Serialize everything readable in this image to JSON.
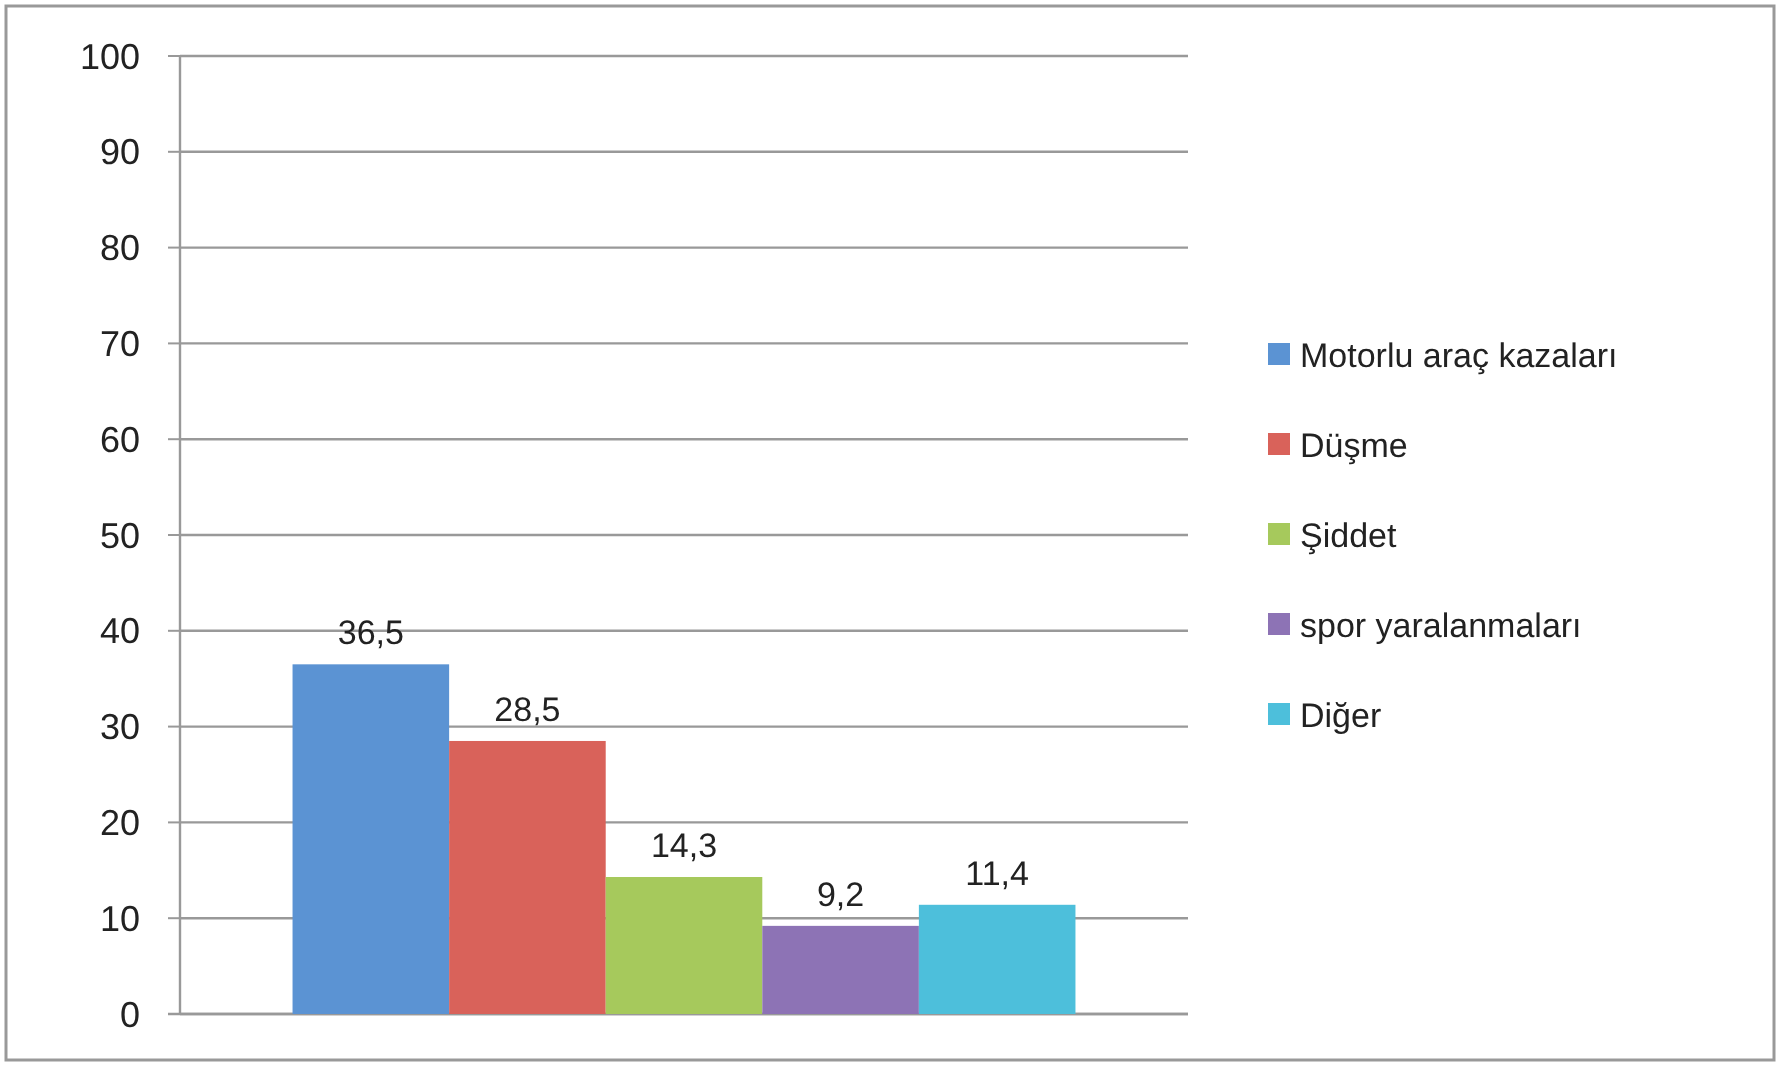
{
  "chart_data": {
    "type": "bar",
    "categories": [
      null
    ],
    "series": [
      {
        "name": "Motorlu araç kazaları",
        "color": "#5b93d3",
        "values": [
          36.5
        ],
        "value_labels": [
          "36,5"
        ]
      },
      {
        "name": "Düşme",
        "color": "#d9625a",
        "values": [
          28.5
        ],
        "value_labels": [
          "28,5"
        ]
      },
      {
        "name": "Şiddet",
        "color": "#a6c95c",
        "values": [
          14.3
        ],
        "value_labels": [
          "14,3"
        ]
      },
      {
        "name": "spor yaralanmaları",
        "color": "#8d73b5",
        "values": [
          9.2
        ],
        "value_labels": [
          "9,2"
        ]
      },
      {
        "name": "Diğer",
        "color": "#4dbfdb",
        "values": [
          11.4
        ],
        "value_labels": [
          "11,4"
        ]
      }
    ],
    "ylim": [
      0,
      100
    ],
    "yticks": [
      0,
      10,
      20,
      30,
      40,
      50,
      60,
      70,
      80,
      90,
      100
    ],
    "grid": "y",
    "legend": "right"
  }
}
